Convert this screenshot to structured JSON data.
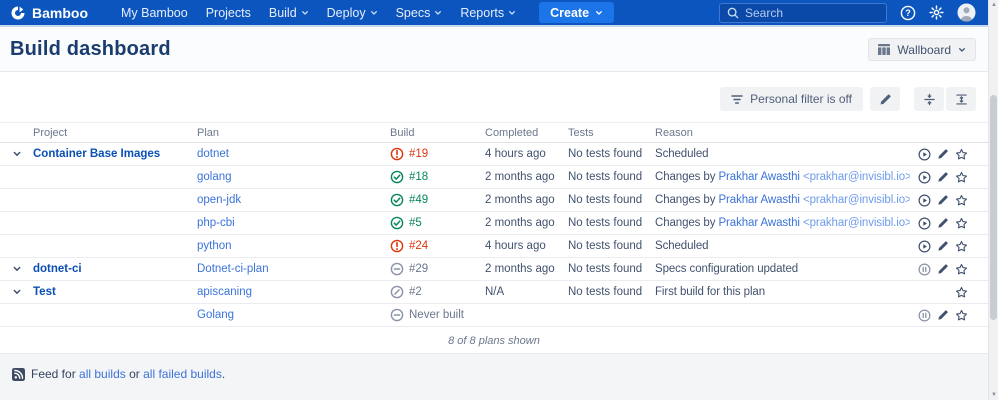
{
  "colors": {
    "nav_bg": "#0C55BE",
    "create_button": "#1B74E8",
    "link": "#3B73D9",
    "project_link": "#0A4FB5",
    "success": "#08875B",
    "failed": "#DE350B",
    "neutral_icon": "#8993A4",
    "action_icon": "#42526E"
  },
  "nav": {
    "brand": "Bamboo",
    "items": [
      {
        "label": "My Bamboo",
        "dropdown": false
      },
      {
        "label": "Projects",
        "dropdown": false
      },
      {
        "label": "Build",
        "dropdown": true
      },
      {
        "label": "Deploy",
        "dropdown": true
      },
      {
        "label": "Specs",
        "dropdown": true
      },
      {
        "label": "Reports",
        "dropdown": true
      }
    ],
    "create_label": "Create",
    "search_placeholder": "Search"
  },
  "header": {
    "title": "Build dashboard",
    "wallboard_label": "Wallboard"
  },
  "toolbar": {
    "filter_label": "Personal filter is off"
  },
  "table": {
    "columns": [
      "Project",
      "Plan",
      "Build",
      "Completed",
      "Tests",
      "Reason"
    ],
    "summary": "8 of 8 plans shown",
    "rows": [
      {
        "project": "Container Base Images",
        "plan": "dotnet",
        "status": "failed",
        "build": "#19",
        "completed": "4 hours ago",
        "tests": "No tests found",
        "reason": {
          "text": "Scheduled"
        },
        "actions": [
          "run",
          "edit",
          "star"
        ]
      },
      {
        "project": "",
        "plan": "golang",
        "status": "success",
        "build": "#18",
        "completed": "2 months ago",
        "tests": "No tests found",
        "reason": {
          "text": "Changes by ",
          "link": "Prakhar Awasthi",
          "email": " <prakhar@invisibl.io>"
        },
        "actions": [
          "run",
          "edit",
          "star"
        ]
      },
      {
        "project": "",
        "plan": "open-jdk",
        "status": "success",
        "build": "#49",
        "completed": "2 months ago",
        "tests": "No tests found",
        "reason": {
          "text": "Changes by ",
          "link": "Prakhar Awasthi",
          "email": " <prakhar@invisibl.io>"
        },
        "actions": [
          "run",
          "edit",
          "star"
        ]
      },
      {
        "project": "",
        "plan": "php-cbi",
        "status": "success",
        "build": "#5",
        "completed": "2 months ago",
        "tests": "No tests found",
        "reason": {
          "text": "Changes by ",
          "link": "Prakhar Awasthi",
          "email": " <prakhar@invisibl.io>"
        },
        "actions": [
          "run",
          "edit",
          "star"
        ]
      },
      {
        "project": "",
        "plan": "python",
        "status": "failed",
        "build": "#24",
        "completed": "4 hours ago",
        "tests": "No tests found",
        "reason": {
          "text": "Scheduled"
        },
        "actions": [
          "run",
          "edit",
          "star"
        ]
      },
      {
        "project": "dotnet-ci",
        "plan": "Dotnet-ci-plan",
        "status": "notbuilt",
        "build": "#29",
        "completed": "2 months ago",
        "tests": "No tests found",
        "reason": {
          "text": "Specs configuration updated"
        },
        "actions": [
          "disabled",
          "edit",
          "star"
        ]
      },
      {
        "project": "Test",
        "plan": "apiscaning",
        "status": "stopped",
        "build": "#2",
        "completed": "N/A",
        "tests": "No tests found",
        "reason": {
          "text": "First build for this plan"
        },
        "actions": [
          "star"
        ]
      },
      {
        "project": "",
        "plan": "Golang",
        "status": "notbuilt",
        "build": "Never built",
        "completed": "",
        "tests": "",
        "reason": {
          "text": ""
        },
        "actions": [
          "disabled",
          "edit",
          "star"
        ]
      }
    ]
  },
  "footer": {
    "prefix": "Feed for",
    "all_builds": "all builds",
    "middle": "or",
    "all_failed": "all failed builds",
    "suffix": "."
  }
}
